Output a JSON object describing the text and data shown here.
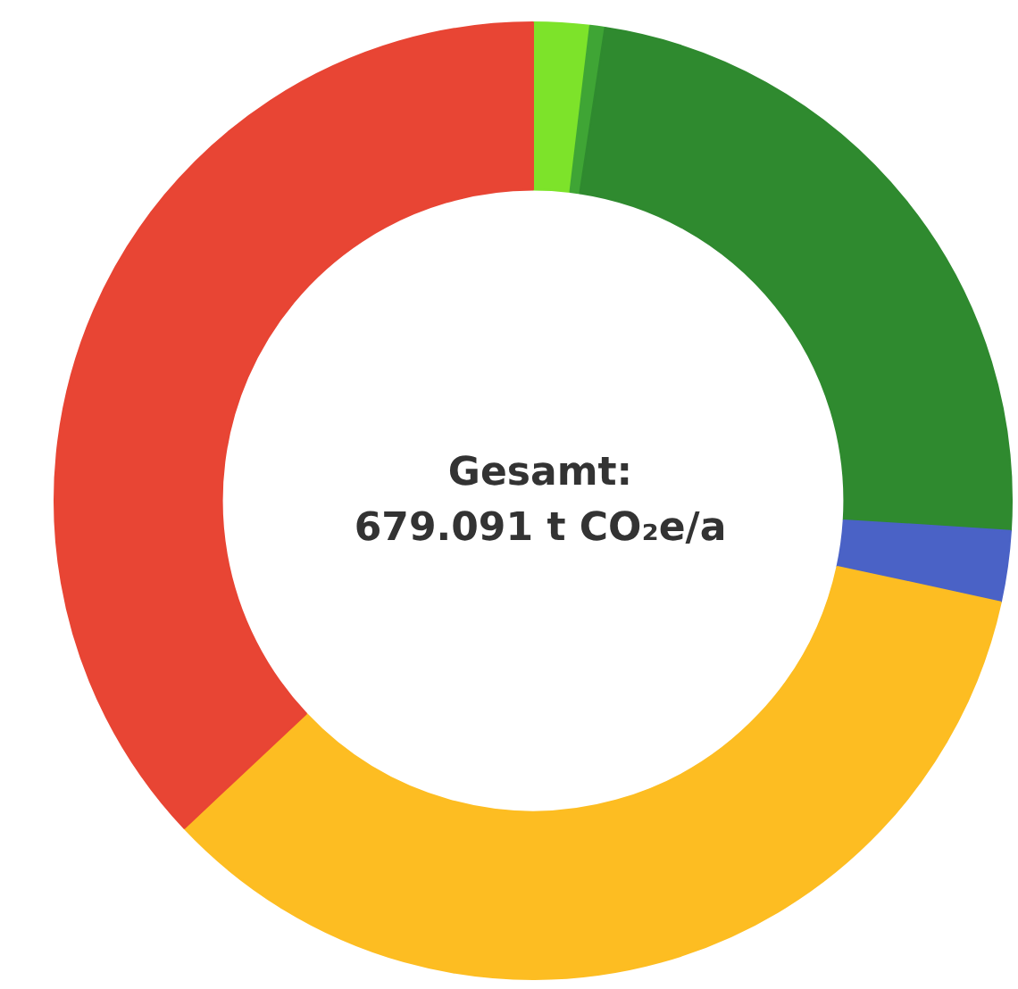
{
  "chart_data": {
    "type": "donut",
    "categories": [
      null,
      null,
      null,
      null,
      null,
      null
    ],
    "values": [
      1.9,
      0.5,
      23.6,
      2.4,
      34.6,
      37.0
    ],
    "colors": [
      "#7de32a",
      "#3fa535",
      "#2f8a2f",
      "#4a62c6",
      "#fdbd22",
      "#e84534"
    ],
    "annotations": [
      "Gesamt:\n679.091 t CO₂e/a"
    ]
  }
}
